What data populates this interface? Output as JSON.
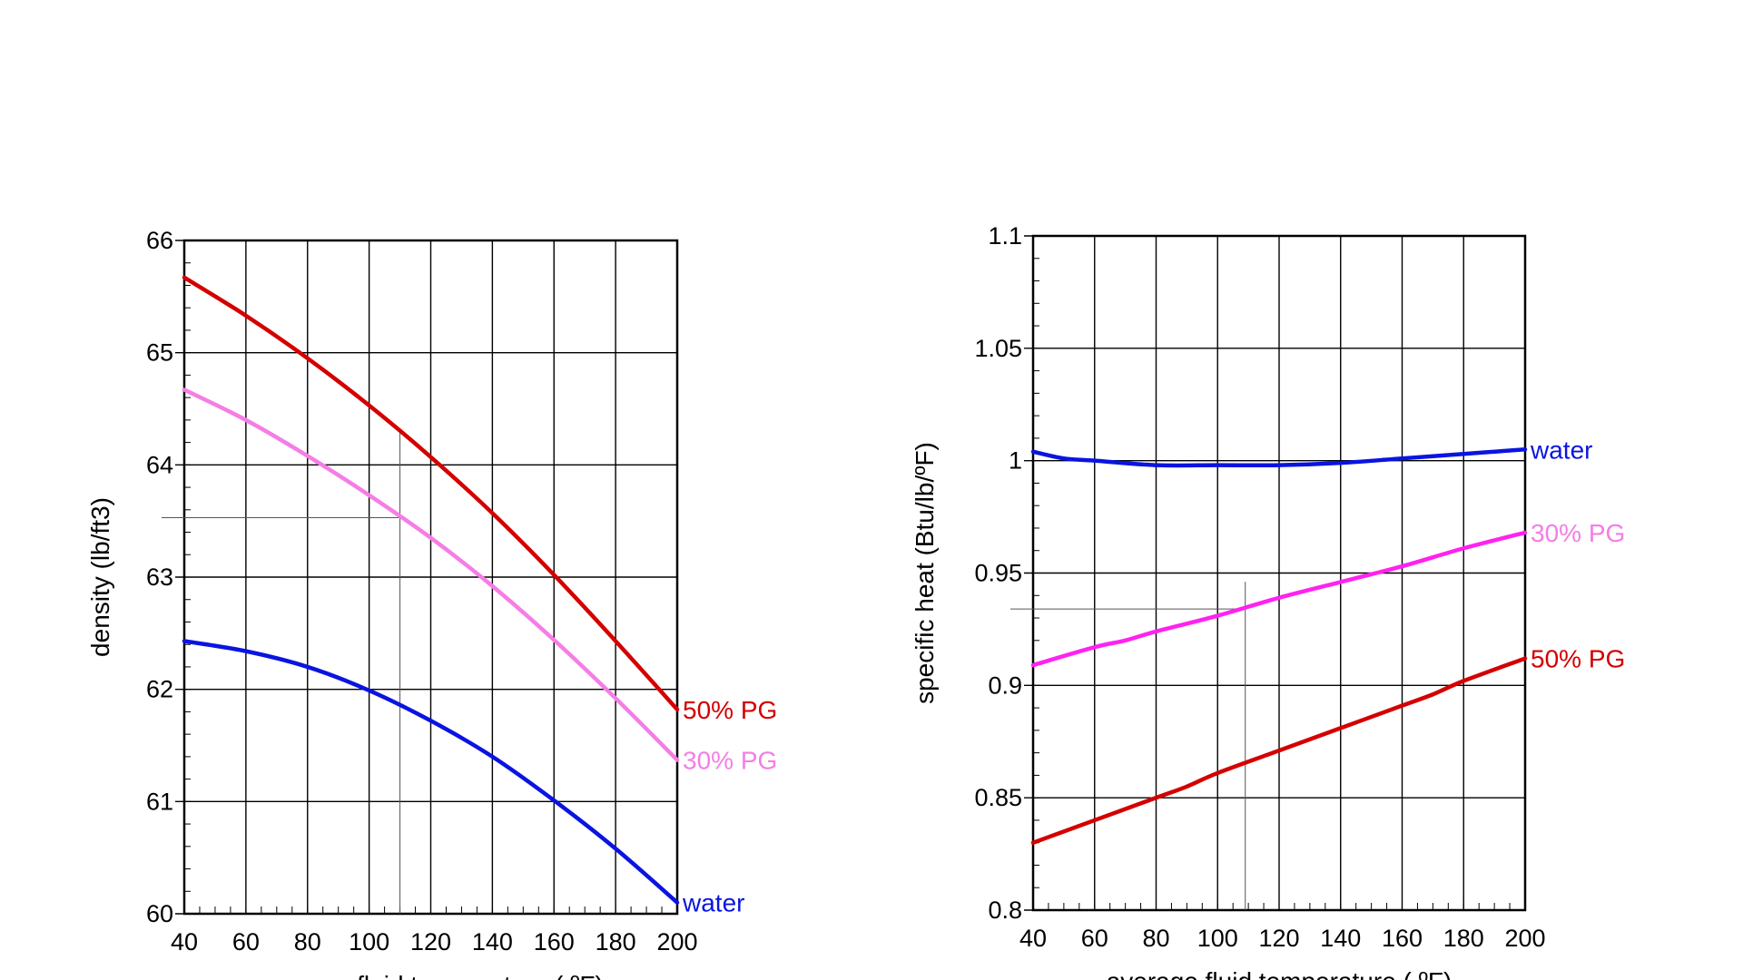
{
  "chart_data": [
    {
      "type": "line",
      "xlabel": "average fluid temperature ( ºF)",
      "ylabel": "density (lb/ft3)",
      "xlim": [
        40,
        200
      ],
      "ylim": [
        60,
        66
      ],
      "xticks": [
        40,
        60,
        80,
        100,
        120,
        140,
        160,
        180,
        200
      ],
      "yticks": [
        60,
        61,
        62,
        63,
        64,
        65,
        66
      ],
      "grid": true,
      "reference_point": {
        "x": 110,
        "y": 63.53
      },
      "series": [
        {
          "name": "50% PG",
          "color": "#d40000",
          "x": [
            40,
            60,
            80,
            100,
            120,
            140,
            160,
            180,
            200
          ],
          "y": [
            65.67,
            65.33,
            64.95,
            64.53,
            64.07,
            63.57,
            63.02,
            62.43,
            61.82
          ]
        },
        {
          "name": "30% PG",
          "color": "#f57de6",
          "x": [
            40,
            60,
            80,
            100,
            120,
            140,
            160,
            180,
            200
          ],
          "y": [
            64.67,
            64.4,
            64.08,
            63.73,
            63.35,
            62.92,
            62.44,
            61.92,
            61.37
          ]
        },
        {
          "name": "water",
          "color": "#0a14e0",
          "x": [
            40,
            60,
            80,
            100,
            120,
            140,
            160,
            180,
            200
          ],
          "y": [
            62.43,
            62.34,
            62.2,
            61.99,
            61.72,
            61.4,
            61.01,
            60.58,
            60.1
          ]
        }
      ]
    },
    {
      "type": "line",
      "xlabel": "average fluid temperature ( ºF)",
      "ylabel": "specific heat (Btu/lb/ºF)",
      "xlim": [
        40,
        200
      ],
      "ylim": [
        0.8,
        1.1
      ],
      "xticks": [
        40,
        60,
        80,
        100,
        120,
        140,
        160,
        180,
        200
      ],
      "yticks": [
        "0.8",
        "0.85",
        "0.9",
        "0.95",
        "1",
        "1.05",
        "1.1"
      ],
      "grid": true,
      "reference_point": {
        "x": 109,
        "y": 0.934
      },
      "series": [
        {
          "name": "water",
          "color": "#0a14e0",
          "x": [
            40,
            50,
            60,
            80,
            100,
            120,
            140,
            160,
            180,
            200
          ],
          "y": [
            1.004,
            1.001,
            1.0,
            0.998,
            0.998,
            0.998,
            0.999,
            1.001,
            1.003,
            1.005
          ]
        },
        {
          "name": "30% PG",
          "color": "#ff22f0",
          "x": [
            40,
            60,
            70,
            80,
            100,
            120,
            140,
            160,
            180,
            200
          ],
          "y": [
            0.909,
            0.917,
            0.92,
            0.924,
            0.931,
            0.939,
            0.946,
            0.953,
            0.961,
            0.968
          ]
        },
        {
          "name": "50% PG",
          "color": "#d40000",
          "x": [
            40,
            60,
            80,
            90,
            100,
            120,
            140,
            160,
            170,
            180,
            200
          ],
          "y": [
            0.83,
            0.84,
            0.85,
            0.855,
            0.861,
            0.871,
            0.881,
            0.891,
            0.896,
            0.902,
            0.912
          ]
        }
      ]
    }
  ]
}
